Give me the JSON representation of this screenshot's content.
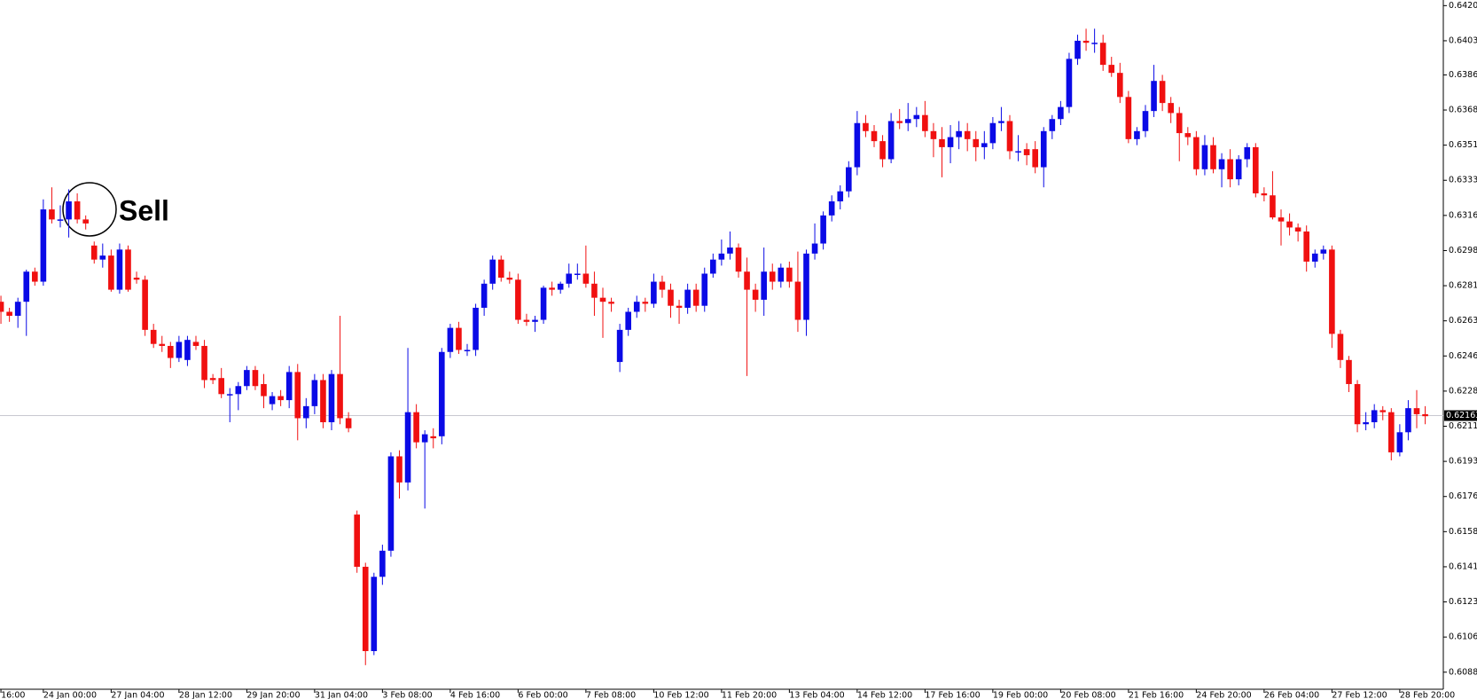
{
  "chart_data": {
    "type": "candlestick",
    "up_color": "#0a0ae6",
    "down_color": "#f01010",
    "ylim": [
      0.608,
      0.64233
    ],
    "yticks": [
      0.64205,
      {
        "value": 0.6403,
        "label": "0.64030"
      },
      {
        "value": 0.6386,
        "label": "0.63860"
      },
      0.63685,
      {
        "value": 0.6351,
        "label": "0.63510"
      },
      0.63335,
      {
        "value": 0.6316,
        "label": "0.63160"
      },
      0.62985,
      {
        "value": 0.6281,
        "label": "0.62810"
      },
      0.62635,
      {
        "value": 0.6246,
        "label": "0.62460"
      },
      0.62285,
      {
        "value": 0.6211,
        "label": "0.62110"
      },
      0.61935,
      {
        "value": 0.6176,
        "label": "0.61760"
      },
      0.61585,
      {
        "value": 0.6141,
        "label": "0.61410"
      },
      0.61235,
      {
        "value": 0.6106,
        "label": "0.61060"
      },
      0.60885
    ],
    "current_price": 0.62163,
    "annotation": "Sell",
    "categories": [
      "16:00",
      null,
      null,
      null,
      null,
      "24 Jan 00:00",
      null,
      null,
      null,
      null,
      null,
      null,
      null,
      "27 Jan 04:00",
      null,
      null,
      null,
      null,
      null,
      null,
      null,
      "28 Jan 12:00",
      null,
      null,
      null,
      null,
      null,
      null,
      null,
      "29 Jan 20:00",
      null,
      null,
      null,
      null,
      null,
      null,
      null,
      "31 Jan 04:00",
      null,
      null,
      null,
      null,
      null,
      null,
      null,
      "3 Feb 08:00",
      null,
      null,
      null,
      null,
      null,
      null,
      null,
      "4 Feb 16:00",
      null,
      null,
      null,
      null,
      null,
      null,
      null,
      "6 Feb 00:00",
      null,
      null,
      null,
      null,
      null,
      null,
      null,
      "7 Feb 08:00",
      null,
      null,
      null,
      null,
      null,
      null,
      null,
      "10 Feb 12:00",
      null,
      null,
      null,
      null,
      null,
      null,
      null,
      "11 Feb 20:00",
      null,
      null,
      null,
      null,
      null,
      null,
      null,
      "13 Feb 04:00",
      null,
      null,
      null,
      null,
      null,
      null,
      null,
      "14 Feb 12:00",
      null,
      null,
      null,
      null,
      null,
      null,
      null,
      "17 Feb 16:00",
      null,
      null,
      null,
      null,
      null,
      null,
      null,
      "19 Feb 00:00",
      null,
      null,
      null,
      null,
      null,
      null,
      null,
      "20 Feb 08:00",
      null,
      null,
      null,
      null,
      null,
      null,
      null,
      "21 Feb 16:00",
      null,
      null,
      null,
      null,
      null,
      null,
      null,
      "24 Feb 20:00",
      null,
      null,
      null,
      null,
      null,
      null,
      null,
      "26 Feb 04:00",
      null,
      null,
      null,
      null,
      null,
      null,
      null,
      "27 Feb 12:00",
      null,
      null,
      null,
      null,
      null,
      null,
      null,
      "28 Feb 20:00",
      null,
      null,
      null
    ],
    "ohlc": [
      [
        0.6273,
        0.6276,
        0.6262,
        0.6268
      ],
      [
        0.6268,
        0.627,
        0.6263,
        0.6266
      ],
      [
        0.6266,
        0.6275,
        0.626,
        0.6273
      ],
      [
        0.6273,
        0.6289,
        0.6256,
        0.6288
      ],
      [
        0.6288,
        0.629,
        0.6281,
        0.6283
      ],
      [
        0.6283,
        0.6324,
        0.6281,
        0.6319
      ],
      [
        0.6319,
        0.633,
        0.6312,
        0.6314
      ],
      [
        0.6314,
        0.6321,
        0.631,
        0.6314
      ],
      [
        0.6314,
        0.6329,
        0.6305,
        0.6323
      ],
      [
        0.6323,
        0.6327,
        0.6312,
        0.6314
      ],
      [
        0.6314,
        0.6316,
        0.6309,
        0.6312
      ],
      [
        0.6301,
        0.6303,
        0.6292,
        0.6294
      ],
      [
        0.6294,
        0.6302,
        0.629,
        0.6296
      ],
      [
        0.6296,
        0.6299,
        0.6278,
        0.6279
      ],
      [
        0.6279,
        0.6302,
        0.6277,
        0.6299
      ],
      [
        0.6299,
        0.6301,
        0.6278,
        0.6279
      ],
      [
        0.6285,
        0.6288,
        0.6282,
        0.6284
      ],
      [
        0.6284,
        0.6286,
        0.6256,
        0.6259
      ],
      [
        0.6259,
        0.6262,
        0.625,
        0.6252
      ],
      [
        0.6252,
        0.6256,
        0.6248,
        0.6251
      ],
      [
        0.6251,
        0.6253,
        0.624,
        0.6245
      ],
      [
        0.6245,
        0.6256,
        0.6243,
        0.6253
      ],
      [
        0.6244,
        0.6256,
        0.6241,
        0.6254
      ],
      [
        0.6253,
        0.6256,
        0.6249,
        0.6251
      ],
      [
        0.6251,
        0.6254,
        0.623,
        0.6234
      ],
      [
        0.6235,
        0.6237,
        0.6232,
        0.6234
      ],
      [
        0.6235,
        0.624,
        0.6225,
        0.6227
      ],
      [
        0.6227,
        0.623,
        0.6213,
        0.6227
      ],
      [
        0.6227,
        0.6233,
        0.6219,
        0.6231
      ],
      [
        0.6231,
        0.6241,
        0.6229,
        0.6239
      ],
      [
        0.6239,
        0.6241,
        0.6229,
        0.6231
      ],
      [
        0.6232,
        0.6237,
        0.622,
        0.6226
      ],
      [
        0.6222,
        0.6228,
        0.6219,
        0.6226
      ],
      [
        0.6226,
        0.6229,
        0.6221,
        0.6224
      ],
      [
        0.6224,
        0.6241,
        0.622,
        0.6238
      ],
      [
        0.6238,
        0.6242,
        0.6204,
        0.6215
      ],
      [
        0.6215,
        0.6225,
        0.621,
        0.6221
      ],
      [
        0.6221,
        0.6237,
        0.6217,
        0.6234
      ],
      [
        0.6234,
        0.6237,
        0.621,
        0.6213
      ],
      [
        0.6213,
        0.6239,
        0.6209,
        0.6237
      ],
      [
        0.6237,
        0.6266,
        0.6212,
        0.6215
      ],
      [
        0.6215,
        0.6218,
        0.6208,
        0.621
      ],
      [
        0.6167,
        0.6169,
        0.6138,
        0.6141
      ],
      [
        0.6141,
        0.6143,
        0.6092,
        0.6099
      ],
      [
        0.6099,
        0.6138,
        0.6097,
        0.6136
      ],
      [
        0.6136,
        0.6152,
        0.6132,
        0.6149
      ],
      [
        0.6149,
        0.6198,
        0.6146,
        0.6196
      ],
      [
        0.6196,
        0.6199,
        0.6175,
        0.6183
      ],
      [
        0.6183,
        0.625,
        0.6179,
        0.6218
      ],
      [
        0.6218,
        0.6222,
        0.62,
        0.6203
      ],
      [
        0.6203,
        0.6209,
        0.617,
        0.6207
      ],
      [
        0.6206,
        0.621,
        0.62,
        0.6205
      ],
      [
        0.6206,
        0.625,
        0.6202,
        0.6248
      ],
      [
        0.6248,
        0.6262,
        0.6245,
        0.626
      ],
      [
        0.626,
        0.6263,
        0.6247,
        0.6249
      ],
      [
        0.6249,
        0.6252,
        0.6246,
        0.6249
      ],
      [
        0.6249,
        0.6272,
        0.6246,
        0.627
      ],
      [
        0.627,
        0.6284,
        0.6266,
        0.6282
      ],
      [
        0.6282,
        0.6296,
        0.6279,
        0.6294
      ],
      [
        0.6294,
        0.6296,
        0.6283,
        0.6285
      ],
      [
        0.6285,
        0.6288,
        0.6282,
        0.6284
      ],
      [
        0.6284,
        0.6287,
        0.6262,
        0.6264
      ],
      [
        0.6264,
        0.6267,
        0.6261,
        0.6263
      ],
      [
        0.6263,
        0.6266,
        0.6258,
        0.6264
      ],
      [
        0.6264,
        0.6281,
        0.6262,
        0.628
      ],
      [
        0.628,
        0.6283,
        0.6276,
        0.6279
      ],
      [
        0.6279,
        0.6283,
        0.6277,
        0.6282
      ],
      [
        0.6282,
        0.6292,
        0.628,
        0.6287
      ],
      [
        0.6287,
        0.6292,
        0.6284,
        0.6287
      ],
      [
        0.6287,
        0.6301,
        0.628,
        0.6282
      ],
      [
        0.6282,
        0.6288,
        0.6266,
        0.6275
      ],
      [
        0.6275,
        0.628,
        0.6255,
        0.6273
      ],
      [
        0.6273,
        0.6275,
        0.6268,
        0.6272
      ],
      [
        0.6243,
        0.6262,
        0.6238,
        0.6259
      ],
      [
        0.6259,
        0.627,
        0.6256,
        0.6268
      ],
      [
        0.6268,
        0.6276,
        0.6265,
        0.6273
      ],
      [
        0.6273,
        0.6275,
        0.6268,
        0.6272
      ],
      [
        0.6272,
        0.6287,
        0.627,
        0.6283
      ],
      [
        0.6283,
        0.6286,
        0.6275,
        0.6279
      ],
      [
        0.6279,
        0.6282,
        0.6265,
        0.6271
      ],
      [
        0.6271,
        0.6274,
        0.6262,
        0.627
      ],
      [
        0.627,
        0.6282,
        0.6267,
        0.6279
      ],
      [
        0.6279,
        0.6282,
        0.6268,
        0.6271
      ],
      [
        0.6271,
        0.629,
        0.6268,
        0.6287
      ],
      [
        0.6287,
        0.6297,
        0.6285,
        0.6294
      ],
      [
        0.6294,
        0.6304,
        0.6291,
        0.6297
      ],
      [
        0.6297,
        0.6308,
        0.6294,
        0.63
      ],
      [
        0.63,
        0.6302,
        0.6285,
        0.6288
      ],
      [
        0.6288,
        0.6295,
        0.6236,
        0.6279
      ],
      [
        0.6279,
        0.6282,
        0.6268,
        0.6274
      ],
      [
        0.6274,
        0.63,
        0.6266,
        0.6288
      ],
      [
        0.6288,
        0.6292,
        0.6279,
        0.6283
      ],
      [
        0.6283,
        0.6292,
        0.628,
        0.629
      ],
      [
        0.629,
        0.6293,
        0.628,
        0.6283
      ],
      [
        0.6283,
        0.6298,
        0.6258,
        0.6264
      ],
      [
        0.6264,
        0.6299,
        0.6256,
        0.6297
      ],
      [
        0.6297,
        0.6312,
        0.6294,
        0.6302
      ],
      [
        0.6302,
        0.6318,
        0.6299,
        0.6316
      ],
      [
        0.6316,
        0.6326,
        0.6313,
        0.6323
      ],
      [
        0.6323,
        0.6331,
        0.6319,
        0.6328
      ],
      [
        0.6328,
        0.6343,
        0.6325,
        0.634
      ],
      [
        0.634,
        0.6368,
        0.6336,
        0.6362
      ],
      [
        0.6362,
        0.6366,
        0.6355,
        0.6358
      ],
      [
        0.6358,
        0.6361,
        0.635,
        0.6353
      ],
      [
        0.6353,
        0.6356,
        0.634,
        0.6344
      ],
      [
        0.6344,
        0.6367,
        0.6342,
        0.6363
      ],
      [
        0.6363,
        0.6369,
        0.6359,
        0.6362
      ],
      [
        0.6362,
        0.6372,
        0.6358,
        0.6364
      ],
      [
        0.6364,
        0.637,
        0.636,
        0.6366
      ],
      [
        0.6366,
        0.6373,
        0.6355,
        0.6358
      ],
      [
        0.6358,
        0.6362,
        0.6345,
        0.6354
      ],
      [
        0.6354,
        0.636,
        0.6335,
        0.635
      ],
      [
        0.635,
        0.6361,
        0.6342,
        0.6355
      ],
      [
        0.6355,
        0.6363,
        0.6349,
        0.6358
      ],
      [
        0.6358,
        0.6362,
        0.6348,
        0.6354
      ],
      [
        0.6354,
        0.6358,
        0.6343,
        0.635
      ],
      [
        0.635,
        0.6358,
        0.6344,
        0.6352
      ],
      [
        0.6352,
        0.6365,
        0.6349,
        0.6362
      ],
      [
        0.6362,
        0.637,
        0.6358,
        0.6363
      ],
      [
        0.6363,
        0.6366,
        0.6344,
        0.6348
      ],
      [
        0.6348,
        0.6356,
        0.6343,
        0.6348
      ],
      [
        0.6349,
        0.6352,
        0.6341,
        0.6346
      ],
      [
        0.6349,
        0.6353,
        0.6337,
        0.634
      ],
      [
        0.634,
        0.636,
        0.633,
        0.6358
      ],
      [
        0.6358,
        0.6366,
        0.6354,
        0.6364
      ],
      [
        0.6364,
        0.6373,
        0.6361,
        0.637
      ],
      [
        0.637,
        0.6397,
        0.6367,
        0.6394
      ],
      [
        0.6394,
        0.6406,
        0.6391,
        0.6403
      ],
      [
        0.6403,
        0.6409,
        0.6398,
        0.6402
      ],
      [
        0.6402,
        0.6409,
        0.6397,
        0.6402
      ],
      [
        0.6402,
        0.6406,
        0.6388,
        0.6391
      ],
      [
        0.6391,
        0.6395,
        0.6385,
        0.6387
      ],
      [
        0.6387,
        0.6392,
        0.6372,
        0.6375
      ],
      [
        0.6375,
        0.6378,
        0.6352,
        0.6354
      ],
      [
        0.6354,
        0.636,
        0.6351,
        0.6358
      ],
      [
        0.6358,
        0.6371,
        0.6355,
        0.6368
      ],
      [
        0.6368,
        0.6391,
        0.6365,
        0.6383
      ],
      [
        0.6383,
        0.6386,
        0.6368,
        0.6372
      ],
      [
        0.6372,
        0.6375,
        0.6362,
        0.6367
      ],
      [
        0.6367,
        0.637,
        0.6343,
        0.6357
      ],
      [
        0.6357,
        0.636,
        0.6351,
        0.6355
      ],
      [
        0.6355,
        0.6358,
        0.6336,
        0.6339
      ],
      [
        0.6339,
        0.6356,
        0.6336,
        0.6351
      ],
      [
        0.6351,
        0.6355,
        0.6337,
        0.6339
      ],
      [
        0.6339,
        0.6347,
        0.633,
        0.6344
      ],
      [
        0.6344,
        0.6349,
        0.633,
        0.6334
      ],
      [
        0.6334,
        0.6346,
        0.6331,
        0.6344
      ],
      [
        0.6344,
        0.6352,
        0.634,
        0.635
      ],
      [
        0.635,
        0.6352,
        0.6325,
        0.6327
      ],
      [
        0.6327,
        0.633,
        0.6323,
        0.6326
      ],
      [
        0.6326,
        0.6338,
        0.6314,
        0.6315
      ],
      [
        0.6315,
        0.6319,
        0.6301,
        0.6313
      ],
      [
        0.6313,
        0.6317,
        0.6306,
        0.631
      ],
      [
        0.631,
        0.6312,
        0.6303,
        0.6308
      ],
      [
        0.6308,
        0.6311,
        0.6288,
        0.6293
      ],
      [
        0.6293,
        0.6299,
        0.629,
        0.6297
      ],
      [
        0.6297,
        0.6301,
        0.6294,
        0.6299
      ],
      [
        0.6299,
        0.6301,
        0.625,
        0.6257
      ],
      [
        0.6257,
        0.6259,
        0.624,
        0.6244
      ],
      [
        0.6244,
        0.6246,
        0.6228,
        0.6232
      ],
      [
        0.6232,
        0.6234,
        0.6208,
        0.6212
      ],
      [
        0.6212,
        0.6218,
        0.6209,
        0.6213
      ],
      [
        0.6213,
        0.6222,
        0.621,
        0.6219
      ],
      [
        0.6219,
        0.6221,
        0.6214,
        0.6218
      ],
      [
        0.6218,
        0.622,
        0.6194,
        0.6198
      ],
      [
        0.6198,
        0.6212,
        0.6196,
        0.6208
      ],
      [
        0.6208,
        0.6224,
        0.6204,
        0.622
      ],
      [
        0.622,
        0.6229,
        0.621,
        0.6217
      ],
      [
        0.6217,
        0.6221,
        0.6212,
        0.6216
      ]
    ]
  }
}
